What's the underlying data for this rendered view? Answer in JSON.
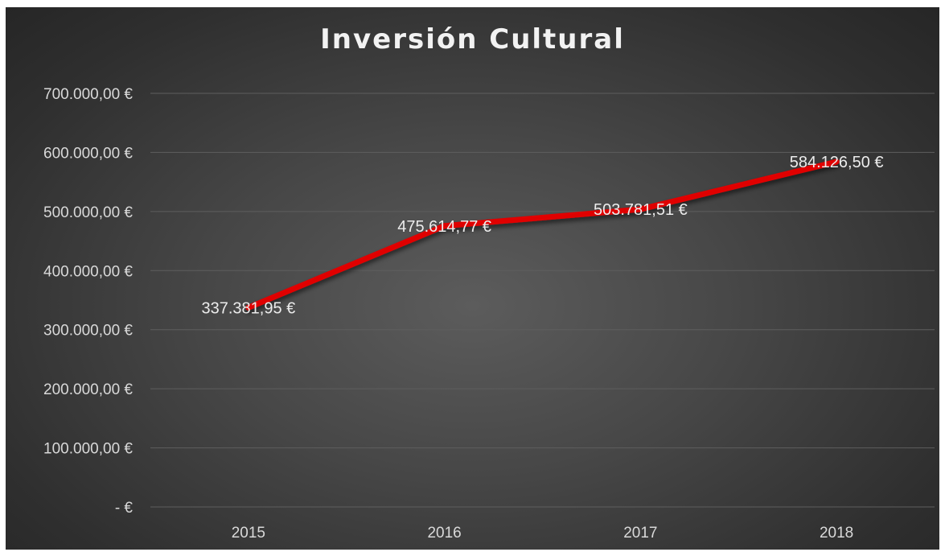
{
  "chart_data": {
    "type": "line",
    "title": "Inversión Cultural",
    "xlabel": "",
    "ylabel": "",
    "categories": [
      "2015",
      "2016",
      "2017",
      "2018"
    ],
    "series": [
      {
        "values": [
          337381.95,
          475614.77,
          503781.51,
          584126.5
        ],
        "data_labels": [
          "337.381,95 €",
          "475.614,77 €",
          "503.781,51 €",
          "584.126,50 €"
        ],
        "color": "#e00000"
      }
    ],
    "ylim": [
      0,
      700000
    ],
    "yticks": [
      0,
      100000,
      200000,
      300000,
      400000,
      500000,
      600000,
      700000
    ],
    "ytick_labels": [
      "-   €",
      "100.000,00 €",
      "200.000,00 €",
      "300.000,00 €",
      "400.000,00 €",
      "500.000,00 €",
      "600.000,00 €",
      "700.000,00 €"
    ],
    "grid": true,
    "legend": "none",
    "background": "#3a3a3a"
  }
}
